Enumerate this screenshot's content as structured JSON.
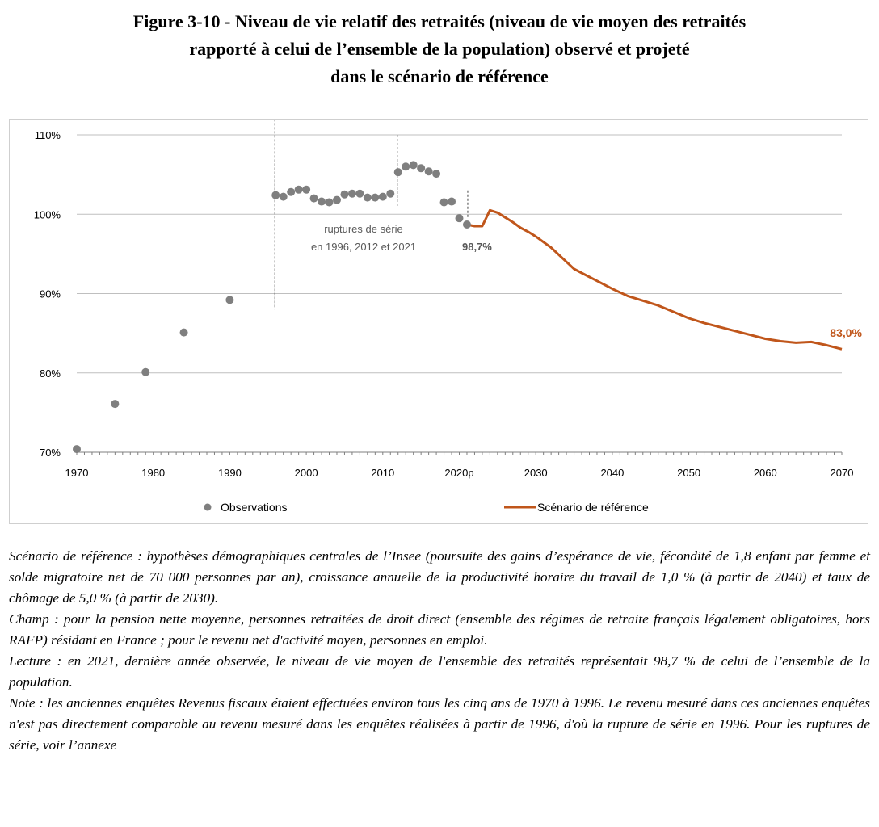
{
  "title": {
    "line1": "Figure 3-10 - Niveau de vie relatif des retraités (niveau de vie moyen des retraités",
    "line2": "rapporté à celui de l’ensemble de la population) observé et projeté",
    "line3": "dans le scénario de référence"
  },
  "colors": {
    "observations": "#7f7f7f",
    "scenario": "#c0561b",
    "grid": "#bfbfbf",
    "annotation_text": "#595959"
  },
  "chart_data": {
    "type": "line",
    "title": "Niveau de vie relatif des retraités observé et projeté dans le scénario de référence",
    "xlabel": "",
    "ylabel": "",
    "xlim": [
      1970,
      2070
    ],
    "ylim": [
      70,
      110
    ],
    "y_ticks": [
      {
        "value": 70,
        "label": "70%"
      },
      {
        "value": 80,
        "label": "80%"
      },
      {
        "value": 90,
        "label": "90%"
      },
      {
        "value": 100,
        "label": "100%"
      },
      {
        "value": 110,
        "label": "110%"
      }
    ],
    "x_ticks": [
      {
        "value": 1970,
        "label": "1970"
      },
      {
        "value": 1980,
        "label": "1980"
      },
      {
        "value": 1990,
        "label": "1990"
      },
      {
        "value": 2000,
        "label": "2000"
      },
      {
        "value": 2010,
        "label": "2010"
      },
      {
        "value": 2020,
        "label": "2020p"
      },
      {
        "value": 2030,
        "label": "2030"
      },
      {
        "value": 2040,
        "label": "2040"
      },
      {
        "value": 2050,
        "label": "2050"
      },
      {
        "value": 2060,
        "label": "2060"
      },
      {
        "value": 2070,
        "label": "2070"
      }
    ],
    "grid": true,
    "legend_position": "bottom",
    "series": [
      {
        "name": "Observations",
        "kind": "scatter",
        "x": [
          1970,
          1975,
          1979,
          1984,
          1990,
          1996,
          1997,
          1998,
          1999,
          2000,
          2001,
          2002,
          2003,
          2004,
          2005,
          2006,
          2007,
          2008,
          2009,
          2010,
          2011,
          2012,
          2013,
          2014,
          2015,
          2016,
          2017,
          2018,
          2019,
          2020,
          2021
        ],
        "y": [
          70.4,
          76.1,
          80.1,
          85.1,
          89.2,
          102.4,
          102.2,
          102.8,
          103.1,
          103.1,
          102.0,
          101.6,
          101.5,
          101.8,
          102.5,
          102.6,
          102.6,
          102.1,
          102.1,
          102.2,
          102.6,
          105.3,
          106.0,
          106.2,
          105.8,
          105.4,
          105.1,
          101.5,
          101.6,
          99.5,
          98.7
        ]
      },
      {
        "name": "Scénario de référence",
        "kind": "line",
        "x": [
          2021,
          2022,
          2023,
          2024,
          2025,
          2026,
          2027,
          2028,
          2029,
          2030,
          2032,
          2034,
          2035,
          2036,
          2038,
          2040,
          2042,
          2044,
          2046,
          2048,
          2050,
          2052,
          2054,
          2056,
          2058,
          2060,
          2062,
          2064,
          2066,
          2068,
          2070
        ],
        "y": [
          98.7,
          98.5,
          98.5,
          100.5,
          100.2,
          99.6,
          99.0,
          98.3,
          97.8,
          97.2,
          95.8,
          94.0,
          93.1,
          92.6,
          91.6,
          90.6,
          89.7,
          89.1,
          88.5,
          87.7,
          86.9,
          86.3,
          85.8,
          85.3,
          84.8,
          84.3,
          84.0,
          83.8,
          83.9,
          83.5,
          83.0
        ]
      }
    ],
    "breaks": [
      1996,
      2012,
      2021
    ],
    "annotations": {
      "ruptures_line1": "ruptures de série",
      "ruptures_line2": "en 1996, 2012 et 2021",
      "last_observed": "98,7%",
      "last_projected": "83,0%"
    },
    "legend": {
      "observations": "Observations",
      "scenario": "Scénario de référence"
    }
  },
  "notes": {
    "scenario": "Scénario de référence : hypothèses démographiques centrales de l’Insee (poursuite des gains d’espérance de vie, fécondité de 1,8 enfant par femme et solde migratoire net de 70 000 personnes par an), croissance annuelle de la productivité horaire du travail de 1,0 % (à partir de 2040) et taux de chômage de 5,0 % (à partir de 2030).",
    "champ": "Champ : pour la pension nette moyenne, personnes retraitées de droit direct (ensemble des régimes de retraite français légalement obligatoires, hors RAFP) résidant en France ; pour le revenu net d'activité moyen, personnes en emploi.",
    "lecture": "Lecture : en 2021, dernière année observée, le niveau de vie moyen de l'ensemble des retraités représentait 98,7 % de celui de l’ensemble de la population.",
    "note": "Note : les anciennes enquêtes Revenus fiscaux étaient effectuées environ tous les cinq ans de 1970 à 1996. Le revenu mesuré dans ces anciennes enquêtes n'est pas directement comparable au revenu mesuré dans les enquêtes réalisées à partir de 1996, d'où la rupture de série en 1996. Pour les ruptures de série, voir l’annexe"
  }
}
